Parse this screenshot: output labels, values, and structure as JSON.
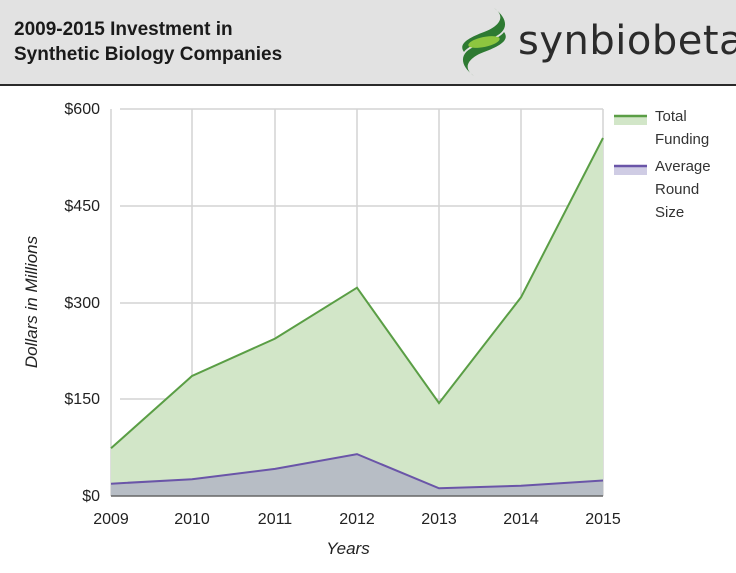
{
  "header": {
    "title_line1": "2009-2015 Investment in",
    "title_line2": "Synthetic Biology Companies",
    "logo_text": "synbiobeta"
  },
  "colors": {
    "total_line": "#5a9e45",
    "total_fill": "#d2e6c8",
    "avg_line": "#6a55a8",
    "avg_fill": "#b4b8c4",
    "grid": "#d4d4d4",
    "header_bg": "#e2e2e2",
    "logo_dark": "#2e7a32",
    "logo_light": "#8dc63f"
  },
  "chart_data": {
    "type": "area",
    "title": "2009-2015 Investment in Synthetic Biology Companies",
    "xlabel": "Years",
    "ylabel": "Dollars in Millions",
    "categories": [
      "2009",
      "2010",
      "2011",
      "2012",
      "2013",
      "2014",
      "2015"
    ],
    "yticks": [
      "$0",
      "$150",
      "$300",
      "$450",
      "$600"
    ],
    "ylim": [
      0,
      600
    ],
    "grid": true,
    "legend_position": "right",
    "series": [
      {
        "name": "Total Funding",
        "values": [
          74,
          186,
          244,
          323,
          144,
          308,
          555
        ]
      },
      {
        "name": "Average Round Size",
        "values": [
          19,
          26,
          42,
          65,
          12,
          16,
          24
        ]
      }
    ]
  },
  "legend": {
    "total_line1": "Total",
    "total_line2": "Funding",
    "avg_line1": "Average",
    "avg_line2": "Round",
    "avg_line3": "Size"
  }
}
